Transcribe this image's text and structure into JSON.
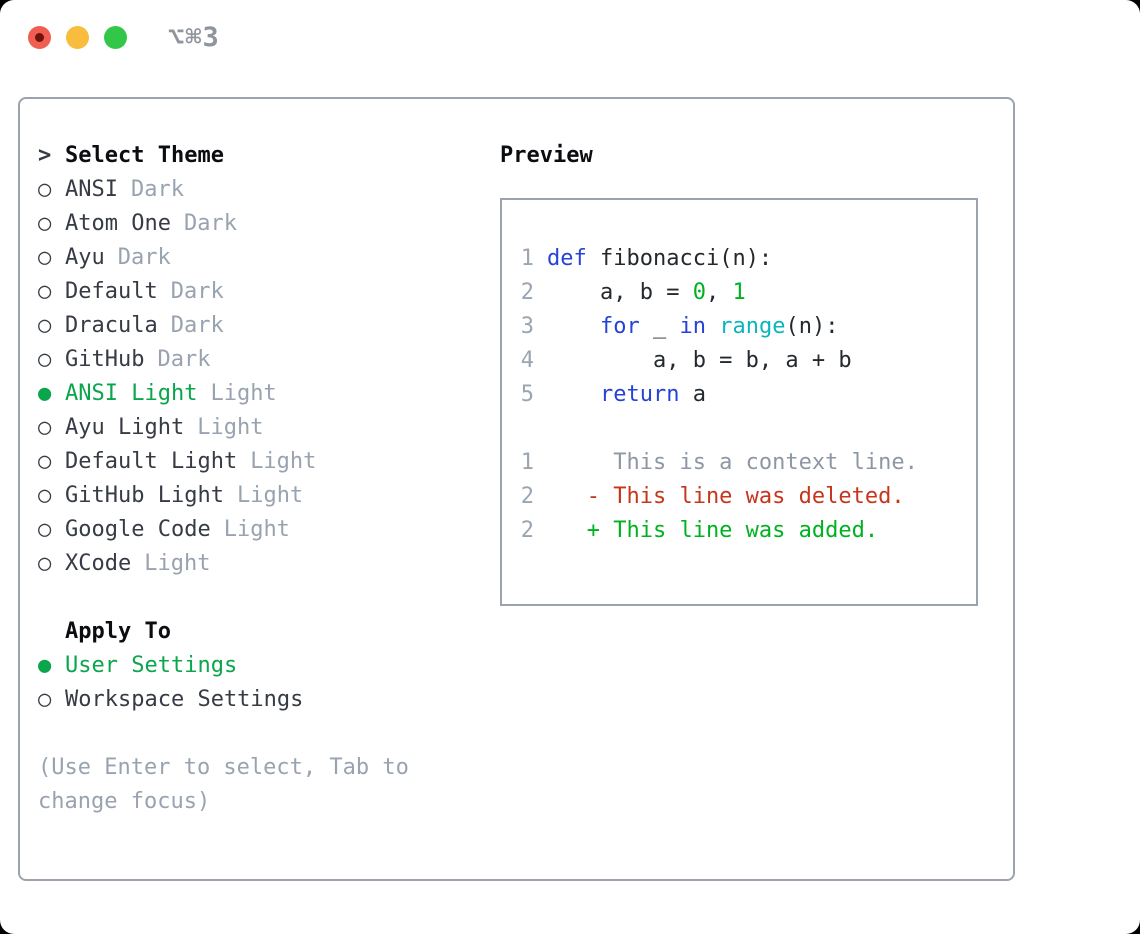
{
  "window": {
    "shortcut_label": "⌥⌘3"
  },
  "palette": {
    "accent_green": "#0aa64c",
    "keyword_blue": "#2543d6",
    "function_cyan": "#0ab6bc",
    "number_green": "#00b222",
    "deleted_red": "#c5361d",
    "added_green": "#00b222",
    "muted_gray": "#99a3b0",
    "border_gray": "#9aa3ae",
    "traffic_red": "#f25d52",
    "traffic_yellow": "#f8bd3d",
    "traffic_green": "#33c749"
  },
  "left": {
    "header_prefix": ">",
    "header": "Select Theme",
    "themes": [
      {
        "marker": "○",
        "name": "ANSI",
        "tag": "Dark",
        "selected": false
      },
      {
        "marker": "○",
        "name": "Atom One",
        "tag": "Dark",
        "selected": false
      },
      {
        "marker": "○",
        "name": "Ayu",
        "tag": "Dark",
        "selected": false
      },
      {
        "marker": "○",
        "name": "Default",
        "tag": "Dark",
        "selected": false
      },
      {
        "marker": "○",
        "name": "Dracula",
        "tag": "Dark",
        "selected": false
      },
      {
        "marker": "○",
        "name": "GitHub",
        "tag": "Dark",
        "selected": false
      },
      {
        "marker": "●",
        "name": "ANSI Light",
        "tag": "Light",
        "selected": true
      },
      {
        "marker": "○",
        "name": "Ayu Light",
        "tag": "Light",
        "selected": false
      },
      {
        "marker": "○",
        "name": "Default Light",
        "tag": "Light",
        "selected": false
      },
      {
        "marker": "○",
        "name": "GitHub Light",
        "tag": "Light",
        "selected": false
      },
      {
        "marker": "○",
        "name": "Google Code",
        "tag": "Light",
        "selected": false
      },
      {
        "marker": "○",
        "name": "XCode",
        "tag": "Light",
        "selected": false
      }
    ],
    "apply_header": "Apply To",
    "apply_options": [
      {
        "marker": "●",
        "name": "User Settings",
        "selected": true
      },
      {
        "marker": "○",
        "name": "Workspace Settings",
        "selected": false
      }
    ],
    "help_line1": "(Use Enter to select, Tab to",
    "help_line2": "change focus)"
  },
  "preview": {
    "header": "Preview",
    "code_lines": [
      {
        "no": "1",
        "segments": [
          {
            "t": "def",
            "c": "kw"
          },
          {
            "t": " fibonacci(n):",
            "c": "fg"
          }
        ]
      },
      {
        "no": "2",
        "segments": [
          {
            "t": "    a, b = ",
            "c": "fg"
          },
          {
            "t": "0",
            "c": "num"
          },
          {
            "t": ", ",
            "c": "fg"
          },
          {
            "t": "1",
            "c": "num"
          }
        ]
      },
      {
        "no": "3",
        "segments": [
          {
            "t": "    ",
            "c": "fg"
          },
          {
            "t": "for",
            "c": "kw"
          },
          {
            "t": " _ ",
            "c": "fg"
          },
          {
            "t": "in",
            "c": "kw"
          },
          {
            "t": " ",
            "c": "fg"
          },
          {
            "t": "range",
            "c": "fn"
          },
          {
            "t": "(n):",
            "c": "fg"
          }
        ]
      },
      {
        "no": "4",
        "segments": [
          {
            "t": "        a, b = b, a + b",
            "c": "fg"
          }
        ]
      },
      {
        "no": "5",
        "segments": [
          {
            "t": "    ",
            "c": "fg"
          },
          {
            "t": "return",
            "c": "kw"
          },
          {
            "t": " a",
            "c": "fg"
          }
        ]
      }
    ],
    "diff_lines": [
      {
        "no": "1",
        "segments": [
          {
            "t": "     This is a context line.",
            "c": "ctx"
          }
        ]
      },
      {
        "no": "2",
        "segments": [
          {
            "t": "   - This line was deleted.",
            "c": "del"
          }
        ]
      },
      {
        "no": "2",
        "segments": [
          {
            "t": "   + This line was added.",
            "c": "add"
          }
        ]
      }
    ]
  }
}
